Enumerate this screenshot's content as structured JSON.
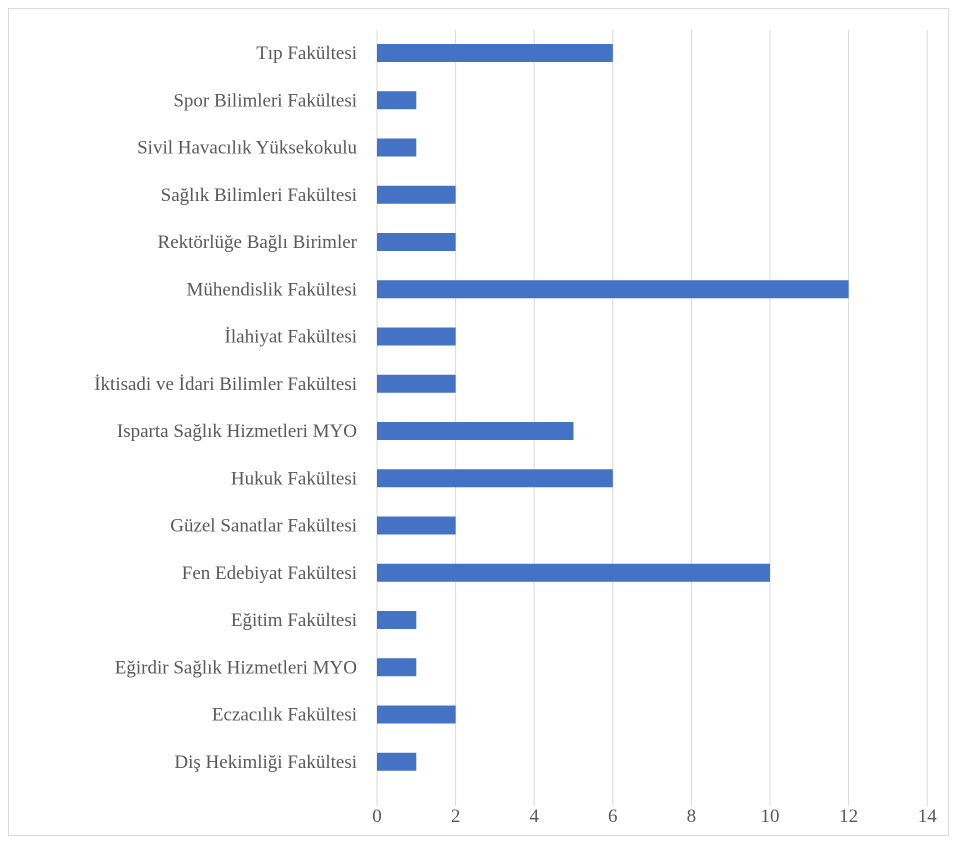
{
  "chart_data": {
    "type": "bar",
    "orientation": "horizontal",
    "categories": [
      "Tıp Fakültesi",
      "Spor Bilimleri Fakültesi",
      "Sivil Havacılık Yüksekokulu",
      "Sağlık Bilimleri Fakültesi",
      "Rektörlüğe Bağlı Birimler",
      "Mühendislik Fakültesi",
      "İlahiyat Fakültesi",
      "İktisadi ve İdari Bilimler Fakültesi",
      "Isparta Sağlık Hizmetleri MYO",
      "Hukuk Fakültesi",
      "Güzel Sanatlar Fakültesi",
      "Fen Edebiyat Fakültesi",
      "Eğitim Fakültesi",
      "Eğirdir Sağlık Hizmetleri MYO",
      "Eczacılık Fakültesi",
      "Diş Hekimliği Fakültesi"
    ],
    "values": [
      6,
      1,
      1,
      2,
      2,
      12,
      2,
      2,
      5,
      6,
      2,
      10,
      1,
      1,
      2,
      1
    ],
    "xlim": [
      0,
      14
    ],
    "xticks": [
      "0",
      "2",
      "4",
      "6",
      "8",
      "10",
      "12",
      "14"
    ],
    "grid": true,
    "legend": "none",
    "bar_color": "#4472c4",
    "grid_color": "#d9d9d9"
  }
}
